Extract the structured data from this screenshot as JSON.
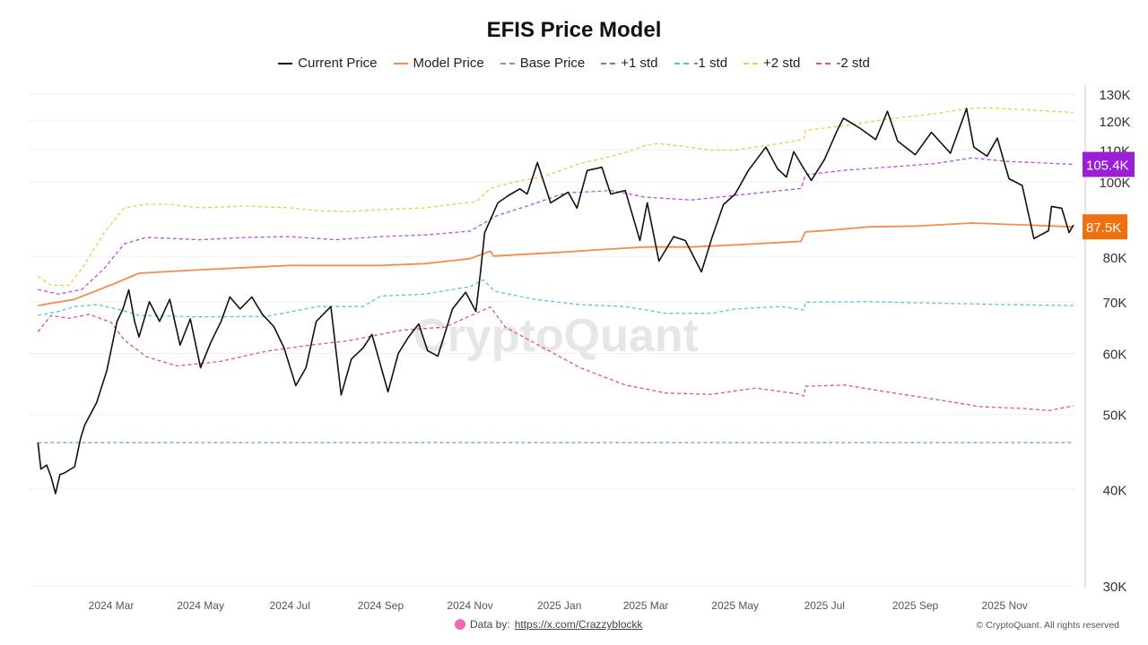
{
  "chart_data": {
    "type": "line",
    "title": "EFIS Price Model",
    "y_scale": "log",
    "ylim": [
      30000,
      130000
    ],
    "y_ticks": [
      30000,
      40000,
      50000,
      60000,
      70000,
      80000,
      100000,
      110000,
      120000,
      130000
    ],
    "y_tick_labels": [
      "30K",
      "40K",
      "50K",
      "60K",
      "70K",
      "80K",
      "100K",
      "110K",
      "120K",
      "130K"
    ],
    "x_ticks": [
      "2024-03-01",
      "2024-05-01",
      "2024-07-01",
      "2024-09-01",
      "2024-11-01",
      "2025-01-01",
      "2025-03-01",
      "2025-05-01",
      "2025-07-01",
      "2025-09-01",
      "2025-11-01"
    ],
    "x_tick_labels": [
      "2024 Mar",
      "2024 May",
      "2024 Jul",
      "2024 Sep",
      "2024 Nov",
      "2025 Jan",
      "2025 Mar",
      "2025 May",
      "2025 Jul",
      "2025 Sep",
      "2025 Nov"
    ],
    "grid": "horizontal",
    "legend_position": "top",
    "end_labels": [
      {
        "text": "105.4K",
        "value": 105400,
        "color": "#9b1fd6"
      },
      {
        "text": "87.5K",
        "value": 87500,
        "color": "#f07010"
      }
    ],
    "series": [
      {
        "name": "Current Price",
        "color": "#111111",
        "dash": false,
        "points": [
          [
            "2024-01-11",
            46000
          ],
          [
            "2024-01-13",
            42500
          ],
          [
            "2024-01-17",
            43000
          ],
          [
            "2024-01-20",
            41500
          ],
          [
            "2024-01-23",
            39500
          ],
          [
            "2024-01-26",
            41800
          ],
          [
            "2024-01-29",
            42000
          ],
          [
            "2024-02-05",
            42800
          ],
          [
            "2024-02-09",
            46500
          ],
          [
            "2024-02-12",
            48500
          ],
          [
            "2024-02-20",
            51800
          ],
          [
            "2024-02-27",
            57000
          ],
          [
            "2024-03-05",
            66000
          ],
          [
            "2024-03-09",
            68500
          ],
          [
            "2024-03-13",
            72500
          ],
          [
            "2024-03-17",
            66000
          ],
          [
            "2024-03-20",
            63000
          ],
          [
            "2024-03-27",
            70000
          ],
          [
            "2024-04-03",
            66000
          ],
          [
            "2024-04-10",
            70500
          ],
          [
            "2024-04-17",
            61500
          ],
          [
            "2024-04-24",
            66500
          ],
          [
            "2024-05-01",
            57500
          ],
          [
            "2024-05-08",
            62000
          ],
          [
            "2024-05-15",
            66000
          ],
          [
            "2024-05-21",
            71000
          ],
          [
            "2024-05-28",
            68500
          ],
          [
            "2024-06-05",
            71000
          ],
          [
            "2024-06-12",
            67500
          ],
          [
            "2024-06-20",
            65000
          ],
          [
            "2024-06-27",
            61000
          ],
          [
            "2024-07-05",
            54500
          ],
          [
            "2024-07-12",
            57500
          ],
          [
            "2024-07-19",
            66000
          ],
          [
            "2024-07-29",
            69000
          ],
          [
            "2024-08-05",
            53000
          ],
          [
            "2024-08-12",
            59000
          ],
          [
            "2024-08-20",
            61000
          ],
          [
            "2024-08-26",
            63500
          ],
          [
            "2024-09-06",
            53500
          ],
          [
            "2024-09-13",
            60000
          ],
          [
            "2024-09-20",
            63000
          ],
          [
            "2024-09-27",
            65500
          ],
          [
            "2024-10-03",
            60500
          ],
          [
            "2024-10-10",
            59500
          ],
          [
            "2024-10-20",
            68500
          ],
          [
            "2024-10-29",
            72000
          ],
          [
            "2024-11-05",
            68000
          ],
          [
            "2024-11-08",
            76000
          ],
          [
            "2024-11-11",
            86000
          ],
          [
            "2024-11-20",
            94000
          ],
          [
            "2024-11-27",
            96000
          ],
          [
            "2024-12-05",
            98000
          ],
          [
            "2024-12-10",
            96500
          ],
          [
            "2024-12-17",
            106000
          ],
          [
            "2024-12-26",
            94000
          ],
          [
            "2025-01-07",
            97000
          ],
          [
            "2025-01-13",
            92500
          ],
          [
            "2025-01-20",
            103500
          ],
          [
            "2025-01-30",
            104500
          ],
          [
            "2025-02-05",
            96500
          ],
          [
            "2025-02-15",
            97500
          ],
          [
            "2025-02-25",
            84000
          ],
          [
            "2025-03-02",
            94000
          ],
          [
            "2025-03-10",
            79000
          ],
          [
            "2025-03-20",
            85000
          ],
          [
            "2025-03-28",
            84000
          ],
          [
            "2025-04-08",
            76500
          ],
          [
            "2025-04-15",
            84500
          ],
          [
            "2025-04-23",
            93500
          ],
          [
            "2025-05-01",
            96500
          ],
          [
            "2025-05-10",
            103500
          ],
          [
            "2025-05-22",
            111000
          ],
          [
            "2025-05-30",
            104000
          ],
          [
            "2025-06-05",
            101500
          ],
          [
            "2025-06-10",
            109500
          ],
          [
            "2025-06-17",
            104000
          ],
          [
            "2025-06-22",
            100500
          ],
          [
            "2025-07-01",
            107000
          ],
          [
            "2025-07-10",
            117000
          ],
          [
            "2025-07-14",
            121000
          ],
          [
            "2025-07-25",
            117500
          ],
          [
            "2025-08-05",
            113500
          ],
          [
            "2025-08-13",
            123500
          ],
          [
            "2025-08-20",
            113000
          ],
          [
            "2025-09-01",
            108500
          ],
          [
            "2025-09-12",
            116000
          ],
          [
            "2025-09-25",
            109000
          ],
          [
            "2025-10-06",
            124500
          ],
          [
            "2025-10-11",
            111000
          ],
          [
            "2025-10-20",
            108000
          ],
          [
            "2025-10-27",
            114000
          ],
          [
            "2025-11-04",
            101000
          ],
          [
            "2025-11-13",
            99000
          ],
          [
            "2025-11-21",
            84500
          ],
          [
            "2025-12-01",
            86500
          ],
          [
            "2025-12-03",
            93000
          ],
          [
            "2025-12-10",
            92500
          ],
          [
            "2025-12-15",
            86000
          ],
          [
            "2025-12-18",
            88000
          ]
        ]
      },
      {
        "name": "Model Price",
        "color": "#f58b4c",
        "dash": false,
        "points": [
          [
            "2024-01-11",
            69200
          ],
          [
            "2024-02-05",
            70500
          ],
          [
            "2024-03-01",
            73600
          ],
          [
            "2024-03-20",
            76200
          ],
          [
            "2024-05-01",
            77000
          ],
          [
            "2024-06-01",
            77500
          ],
          [
            "2024-07-01",
            78000
          ],
          [
            "2024-08-10",
            78000
          ],
          [
            "2024-09-01",
            78000
          ],
          [
            "2024-10-01",
            78400
          ],
          [
            "2024-11-01",
            79600
          ],
          [
            "2024-11-15",
            81400
          ],
          [
            "2024-11-17",
            80200
          ],
          [
            "2025-01-01",
            81100
          ],
          [
            "2025-02-01",
            81800
          ],
          [
            "2025-03-01",
            82400
          ],
          [
            "2025-04-01",
            82400
          ],
          [
            "2025-05-01",
            82900
          ],
          [
            "2025-06-15",
            83800
          ],
          [
            "2025-06-18",
            86200
          ],
          [
            "2025-07-01",
            86500
          ],
          [
            "2025-08-01",
            87500
          ],
          [
            "2025-09-01",
            87700
          ],
          [
            "2025-10-10",
            88500
          ],
          [
            "2025-11-15",
            88000
          ],
          [
            "2025-12-18",
            87500
          ]
        ]
      },
      {
        "name": "Base Price",
        "color": "#5cb85c",
        "dash": true,
        "points": [
          [
            "2024-01-11",
            46000
          ],
          [
            "2025-12-18",
            46000
          ]
        ]
      },
      {
        "name": "+1 std",
        "color": "#b84de0",
        "dash": true,
        "points": [
          [
            "2024-01-11",
            72600
          ],
          [
            "2024-01-25",
            71600
          ],
          [
            "2024-02-10",
            72600
          ],
          [
            "2024-02-25",
            77200
          ],
          [
            "2024-03-10",
            83200
          ],
          [
            "2024-03-25",
            84800
          ],
          [
            "2024-05-01",
            84200
          ],
          [
            "2024-06-01",
            84800
          ],
          [
            "2024-07-01",
            85000
          ],
          [
            "2024-08-01",
            84200
          ],
          [
            "2024-09-01",
            85000
          ],
          [
            "2024-10-01",
            85400
          ],
          [
            "2024-11-01",
            86400
          ],
          [
            "2024-11-20",
            90600
          ],
          [
            "2024-12-10",
            93100
          ],
          [
            "2025-01-05",
            96800
          ],
          [
            "2025-02-05",
            97500
          ],
          [
            "2025-03-01",
            95600
          ],
          [
            "2025-04-01",
            94800
          ],
          [
            "2025-05-01",
            96100
          ],
          [
            "2025-06-15",
            98100
          ],
          [
            "2025-06-18",
            102200
          ],
          [
            "2025-07-15",
            103600
          ],
          [
            "2025-08-15",
            104600
          ],
          [
            "2025-09-15",
            105700
          ],
          [
            "2025-10-10",
            107500
          ],
          [
            "2025-11-01",
            106400
          ],
          [
            "2025-12-18",
            105400
          ]
        ]
      },
      {
        "name": "-1 std",
        "color": "#5bc0de",
        "dash": true,
        "points": [
          [
            "2024-01-11",
            67200
          ],
          [
            "2024-01-25",
            68000
          ],
          [
            "2024-02-05",
            69000
          ],
          [
            "2024-02-20",
            69400
          ],
          [
            "2024-03-05",
            68500
          ],
          [
            "2024-03-20",
            67200
          ],
          [
            "2024-05-01",
            66900
          ],
          [
            "2024-06-15",
            67000
          ],
          [
            "2024-07-20",
            69000
          ],
          [
            "2024-08-20",
            69000
          ],
          [
            "2024-09-01",
            71200
          ],
          [
            "2024-10-01",
            71600
          ],
          [
            "2024-11-01",
            73200
          ],
          [
            "2024-11-10",
            74700
          ],
          [
            "2024-11-18",
            72200
          ],
          [
            "2024-12-15",
            70500
          ],
          [
            "2025-01-15",
            69400
          ],
          [
            "2025-02-15",
            69000
          ],
          [
            "2025-03-15",
            67600
          ],
          [
            "2025-04-15",
            67600
          ],
          [
            "2025-05-01",
            68500
          ],
          [
            "2025-06-01",
            69000
          ],
          [
            "2025-06-17",
            68300
          ],
          [
            "2025-06-18",
            69900
          ],
          [
            "2025-08-01",
            70000
          ],
          [
            "2025-09-15",
            69700
          ],
          [
            "2025-11-01",
            69400
          ],
          [
            "2025-12-18",
            69200
          ]
        ]
      },
      {
        "name": "+2 std",
        "color": "#f0c948",
        "dash": true,
        "points": [
          [
            "2024-01-11",
            75500
          ],
          [
            "2024-01-20",
            73500
          ],
          [
            "2024-02-01",
            73500
          ],
          [
            "2024-02-10",
            77200
          ],
          [
            "2024-02-25",
            85900
          ],
          [
            "2024-03-10",
            92600
          ],
          [
            "2024-03-25",
            93600
          ],
          [
            "2024-04-10",
            93600
          ],
          [
            "2024-05-01",
            92600
          ],
          [
            "2024-06-01",
            93100
          ],
          [
            "2024-07-01",
            92600
          ],
          [
            "2024-07-20",
            91800
          ],
          [
            "2024-08-10",
            91600
          ],
          [
            "2024-09-01",
            92100
          ],
          [
            "2024-10-01",
            92600
          ],
          [
            "2024-10-20",
            93600
          ],
          [
            "2024-11-05",
            94300
          ],
          [
            "2024-11-15",
            98100
          ],
          [
            "2024-12-01",
            100000
          ],
          [
            "2024-12-20",
            101500
          ],
          [
            "2025-01-15",
            105700
          ],
          [
            "2025-02-01",
            107500
          ],
          [
            "2025-02-15",
            109200
          ],
          [
            "2025-03-01",
            111600
          ],
          [
            "2025-03-10",
            112200
          ],
          [
            "2025-04-15",
            110000
          ],
          [
            "2025-05-01",
            110000
          ],
          [
            "2025-06-01",
            112200
          ],
          [
            "2025-06-17",
            113700
          ],
          [
            "2025-06-18",
            116700
          ],
          [
            "2025-07-15",
            118300
          ],
          [
            "2025-08-15",
            120800
          ],
          [
            "2025-09-15",
            122600
          ],
          [
            "2025-10-06",
            124500
          ],
          [
            "2025-10-20",
            124800
          ],
          [
            "2025-11-15",
            124100
          ],
          [
            "2025-12-18",
            123000
          ]
        ]
      },
      {
        "name": "-2 std",
        "color": "#e0508a",
        "dash": true,
        "points": [
          [
            "2024-01-11",
            64000
          ],
          [
            "2024-01-20",
            67200
          ],
          [
            "2024-02-01",
            66600
          ],
          [
            "2024-02-15",
            67400
          ],
          [
            "2024-03-01",
            65800
          ],
          [
            "2024-03-10",
            62400
          ],
          [
            "2024-03-25",
            59400
          ],
          [
            "2024-04-15",
            57800
          ],
          [
            "2024-05-15",
            58600
          ],
          [
            "2024-06-15",
            60400
          ],
          [
            "2024-07-15",
            61500
          ],
          [
            "2024-08-10",
            62300
          ],
          [
            "2024-09-15",
            64300
          ],
          [
            "2024-10-15",
            64900
          ],
          [
            "2024-11-05",
            67600
          ],
          [
            "2024-11-15",
            68900
          ],
          [
            "2024-11-25",
            64900
          ],
          [
            "2024-12-15",
            61900
          ],
          [
            "2025-01-15",
            57500
          ],
          [
            "2025-02-15",
            54600
          ],
          [
            "2025-03-15",
            53300
          ],
          [
            "2025-04-15",
            53100
          ],
          [
            "2025-05-15",
            54100
          ],
          [
            "2025-06-15",
            53100
          ],
          [
            "2025-06-17",
            52800
          ],
          [
            "2025-06-18",
            54400
          ],
          [
            "2025-07-15",
            54600
          ],
          [
            "2025-08-15",
            53400
          ],
          [
            "2025-09-15",
            52300
          ],
          [
            "2025-10-15",
            51200
          ],
          [
            "2025-11-15",
            50900
          ],
          [
            "2025-12-01",
            50600
          ],
          [
            "2025-12-18",
            51300
          ]
        ]
      }
    ]
  },
  "watermark": "CryptoQuant",
  "footer": {
    "data_by_label": "Data by:",
    "data_by_link": "https://x.com/Crazzyblockk",
    "copyright": "© CryptoQuant. All rights reserved"
  }
}
